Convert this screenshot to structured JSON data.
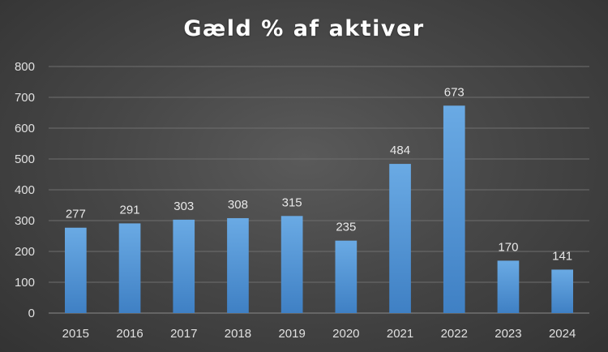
{
  "chart_data": {
    "type": "bar",
    "title": "Gæld % af aktiver",
    "categories": [
      "2015",
      "2016",
      "2017",
      "2018",
      "2019",
      "2020",
      "2021",
      "2022",
      "2023",
      "2024"
    ],
    "values": [
      277,
      291,
      303,
      308,
      315,
      235,
      484,
      673,
      170,
      141
    ],
    "ylim": [
      0,
      800
    ],
    "yticks": [
      0,
      100,
      200,
      300,
      400,
      500,
      600,
      700,
      800
    ],
    "xlabel": "",
    "ylabel": "",
    "grid": true,
    "bar_color": "#5b9bd5",
    "data_labels": true
  }
}
